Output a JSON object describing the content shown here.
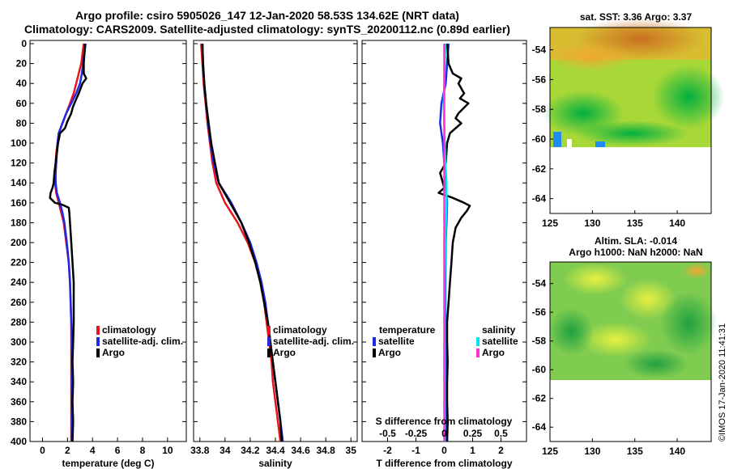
{
  "header": {
    "title_line1": "Argo profile: csiro 5905026_147 12-Jan-2020 58.53S 134.62E (NRT data)",
    "title_line2": "Climatology: CARS2009. Satellite-adjusted climatology: synTS_20200112.nc (0.89d earlier)"
  },
  "sst_map": {
    "title": "sat. SST: 3.36 Argo: 3.37"
  },
  "sla_map": {
    "title_line1": "Altim. SLA: -0.014",
    "title_line2": "Argo h1000: NaN h2000: NaN"
  },
  "stamp": "©IMOS 17-Jan-2020 11:41:31",
  "colors": {
    "climatology": "#e8141e",
    "satellite": "#1e28e6",
    "argo": "#000000",
    "sat_salinity": "#00e6f0",
    "argo_salinity": "#ff30d0"
  },
  "chart_data": [
    {
      "type": "line",
      "panel": "temperature",
      "xlabel": "temperature (deg C)",
      "ylabel": "",
      "xlim": [
        -1,
        11.5
      ],
      "ylim": [
        400,
        0
      ],
      "xticks": [
        0,
        2,
        4,
        6,
        8,
        10
      ],
      "yticks": [
        0,
        20,
        40,
        60,
        80,
        100,
        120,
        140,
        160,
        180,
        200,
        220,
        240,
        260,
        280,
        300,
        320,
        340,
        360,
        380,
        400
      ],
      "legend": {
        "position": "middle-right",
        "entries": [
          "climatology",
          "satellite-adj. clim.",
          "Argo"
        ]
      },
      "series": [
        {
          "name": "climatology",
          "color": "#e8141e",
          "depth": [
            0,
            10,
            20,
            30,
            40,
            50,
            60,
            70,
            80,
            90,
            100,
            110,
            120,
            130,
            140,
            150,
            160,
            170,
            180,
            190,
            200,
            220,
            240,
            260,
            280,
            300,
            320,
            340,
            360,
            380,
            400
          ],
          "values": [
            3.3,
            3.2,
            3.1,
            2.9,
            2.7,
            2.5,
            2.2,
            1.9,
            1.6,
            1.3,
            1.2,
            1.1,
            1.05,
            1.0,
            1.0,
            1.1,
            1.3,
            1.5,
            1.7,
            1.8,
            1.9,
            2.1,
            2.2,
            2.25,
            2.3,
            2.3,
            2.3,
            2.3,
            2.3,
            2.3,
            2.3
          ]
        },
        {
          "name": "satellite-adj. clim.",
          "color": "#1e28e6",
          "depth": [
            0,
            10,
            20,
            30,
            40,
            50,
            60,
            70,
            80,
            90,
            100,
            110,
            120,
            130,
            140,
            150,
            160,
            170,
            180,
            190,
            200,
            220,
            240,
            260,
            280,
            300,
            320,
            340,
            360,
            380,
            400
          ],
          "values": [
            3.45,
            3.35,
            3.25,
            3.15,
            3.0,
            2.7,
            2.3,
            1.9,
            1.6,
            1.3,
            1.2,
            1.15,
            1.1,
            1.05,
            1.05,
            1.15,
            1.4,
            1.6,
            1.75,
            1.85,
            1.95,
            2.1,
            2.2,
            2.25,
            2.3,
            2.35,
            2.35,
            2.35,
            2.35,
            2.35,
            2.35
          ]
        },
        {
          "name": "Argo",
          "color": "#000000",
          "depth": [
            0,
            10,
            20,
            30,
            35,
            40,
            50,
            60,
            65,
            70,
            78,
            85,
            90,
            100,
            110,
            120,
            130,
            140,
            145,
            150,
            155,
            160,
            162,
            165,
            170,
            180,
            200,
            220,
            240,
            260,
            280,
            300,
            320,
            340,
            360,
            380,
            400
          ],
          "values": [
            3.4,
            3.35,
            3.3,
            3.3,
            3.5,
            3.2,
            2.9,
            2.55,
            2.4,
            2.3,
            2.0,
            1.8,
            1.4,
            1.25,
            1.15,
            1.05,
            0.95,
            0.9,
            0.8,
            0.65,
            0.6,
            1.0,
            1.6,
            2.1,
            2.15,
            2.2,
            2.3,
            2.4,
            2.5,
            2.5,
            2.5,
            2.45,
            2.4,
            2.45,
            2.4,
            2.45,
            2.4
          ]
        }
      ]
    },
    {
      "type": "line",
      "panel": "salinity",
      "xlabel": "salinity",
      "ylabel": "",
      "xlim": [
        33.75,
        35.05
      ],
      "ylim": [
        400,
        0
      ],
      "xticks": [
        33.8,
        34,
        34.2,
        34.4,
        34.6,
        34.8,
        35
      ],
      "xtick_labels": [
        "33.8",
        "34",
        "34.2",
        "34.4",
        "34.6",
        "34.8",
        "35"
      ],
      "legend": {
        "position": "middle-right",
        "entries": [
          "climatology",
          "satellite-adj. clim.",
          "Argo"
        ]
      },
      "series": [
        {
          "name": "climatology",
          "color": "#e8141e",
          "depth": [
            0,
            20,
            40,
            60,
            80,
            100,
            120,
            140,
            160,
            180,
            200,
            220,
            240,
            260,
            280,
            300,
            320,
            340,
            360,
            380,
            400
          ],
          "values": [
            33.81,
            33.82,
            33.83,
            33.845,
            33.86,
            33.88,
            33.9,
            33.93,
            34.0,
            34.1,
            34.18,
            34.24,
            34.28,
            34.31,
            34.33,
            34.35,
            34.37,
            34.38,
            34.4,
            34.42,
            34.44
          ]
        },
        {
          "name": "satellite-adj. clim.",
          "color": "#1e28e6",
          "depth": [
            0,
            20,
            40,
            60,
            80,
            100,
            120,
            140,
            160,
            180,
            200,
            220,
            240,
            260,
            280,
            300,
            320,
            340,
            360,
            380,
            400
          ],
          "values": [
            33.82,
            33.825,
            33.835,
            33.85,
            33.865,
            33.885,
            33.91,
            33.95,
            34.05,
            34.13,
            34.2,
            34.25,
            34.29,
            34.32,
            34.34,
            34.36,
            34.38,
            34.4,
            34.42,
            34.44,
            34.46
          ]
        },
        {
          "name": "Argo",
          "color": "#000000",
          "depth": [
            0,
            20,
            40,
            60,
            80,
            100,
            120,
            140,
            160,
            180,
            200,
            220,
            240,
            260,
            280,
            300,
            320,
            340,
            360,
            380,
            400
          ],
          "values": [
            33.82,
            33.825,
            33.835,
            33.85,
            33.87,
            33.89,
            33.92,
            33.95,
            34.04,
            34.13,
            34.19,
            34.24,
            34.28,
            34.31,
            34.34,
            34.36,
            34.38,
            34.4,
            34.42,
            34.44,
            34.45
          ]
        }
      ]
    },
    {
      "type": "line",
      "panel": "difference",
      "xlabel": "T difference from climatology",
      "xlabel_top": "S difference from climatology",
      "xlim": [
        -2.9,
        2.9
      ],
      "ylim": [
        400,
        0
      ],
      "xticks": [
        -2,
        -1,
        0,
        1,
        2
      ],
      "top_axis": {
        "ticks": [
          -0.5,
          -0.25,
          0,
          0.25,
          0.5
        ],
        "labels": [
          "-0.5",
          "-0.25",
          "0",
          "0.25",
          "0.5"
        ],
        "scale": 4
      },
      "legend_temperature": {
        "title": "temperature",
        "entries": [
          "satellite",
          "Argo"
        ]
      },
      "legend_salinity": {
        "title": "salinity",
        "entries": [
          "satellite",
          "Argo"
        ]
      },
      "series": [
        {
          "name": "temperature satellite",
          "color": "#1e28e6",
          "depth": [
            0,
            20,
            40,
            60,
            80,
            100,
            120,
            140,
            160,
            180,
            200,
            240,
            280,
            320,
            360,
            400
          ],
          "values": [
            0.15,
            0.1,
            0.05,
            -0.1,
            -0.15,
            -0.05,
            0.0,
            0.05,
            0.1,
            0.08,
            0.05,
            0.04,
            0.04,
            0.05,
            0.05,
            0.05
          ]
        },
        {
          "name": "temperature Argo",
          "color": "#000000",
          "depth": [
            0,
            20,
            30,
            35,
            40,
            50,
            55,
            60,
            70,
            75,
            80,
            90,
            100,
            120,
            130,
            140,
            145,
            150,
            155,
            160,
            163,
            168,
            175,
            185,
            200,
            220,
            240,
            260,
            280,
            300,
            320,
            340,
            360,
            380,
            400
          ],
          "values": [
            0.1,
            0.15,
            0.3,
            0.6,
            0.5,
            0.7,
            0.55,
            0.85,
            0.5,
            0.4,
            0.6,
            0.2,
            0.1,
            0.05,
            -0.15,
            -0.05,
            0.0,
            -0.2,
            0.3,
            0.7,
            0.9,
            0.8,
            0.6,
            0.4,
            0.3,
            0.25,
            0.2,
            0.15,
            0.1,
            0.1,
            0.12,
            0.1,
            0.1,
            0.12,
            0.1
          ]
        },
        {
          "name": "salinity satellite",
          "color": "#00e6f0",
          "depth": [
            0,
            20,
            40,
            60,
            80,
            100,
            120,
            140,
            160,
            180,
            200,
            240,
            280,
            320,
            360,
            400
          ],
          "values": [
            0.01,
            0.005,
            0.0,
            -0.005,
            0.0,
            0.005,
            0.01,
            0.02,
            0.02,
            0.015,
            0.01,
            0.005,
            0.005,
            0.005,
            0.005,
            0.005
          ]
        },
        {
          "name": "salinity Argo",
          "color": "#ff30d0",
          "depth": [
            0,
            40,
            80,
            120,
            160,
            200,
            240,
            280,
            320,
            360,
            400
          ],
          "values": [
            0,
            0,
            0,
            0,
            0,
            0,
            0,
            0,
            0,
            0,
            0
          ]
        }
      ]
    },
    {
      "type": "heatmap",
      "panel": "sst-map",
      "title": "sat. SST: 3.36 Argo: 3.37",
      "xlim": [
        125,
        144
      ],
      "ylim": [
        -65,
        -52.5
      ],
      "xticks": [
        125,
        130,
        135,
        140
      ],
      "yticks": [
        -54,
        -56,
        -58,
        -60,
        -62,
        -64
      ]
    },
    {
      "type": "heatmap",
      "panel": "sla-map",
      "title": "Altim. SLA: -0.014",
      "xlim": [
        125,
        144
      ],
      "ylim": [
        -65,
        -52.5
      ],
      "xticks": [
        125,
        130,
        135,
        140
      ],
      "yticks": [
        -54,
        -56,
        -58,
        -60,
        -62,
        -64
      ]
    }
  ]
}
